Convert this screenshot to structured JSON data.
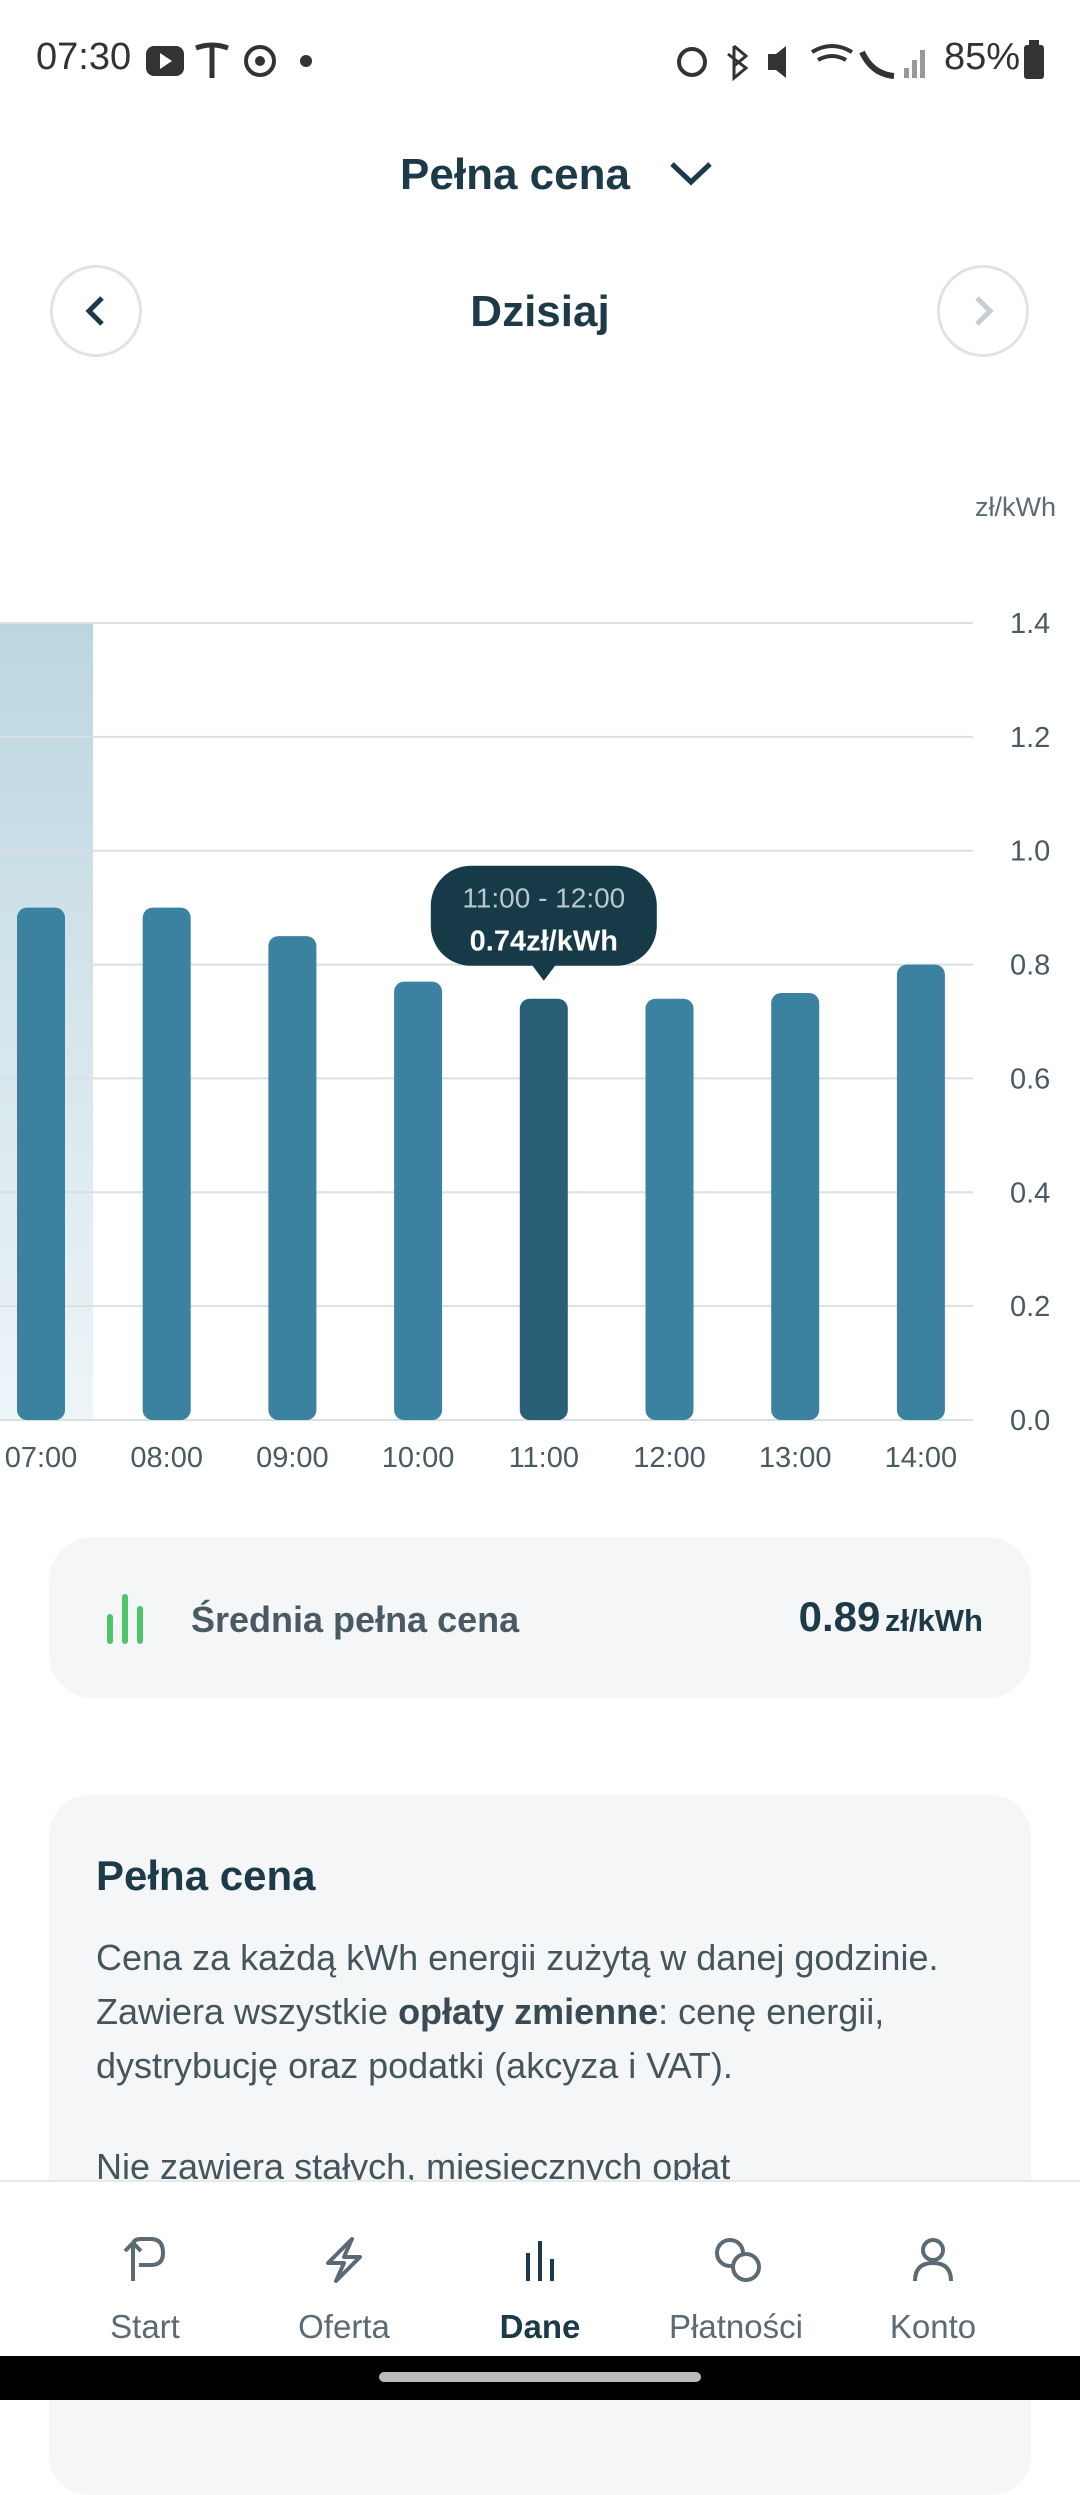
{
  "status_bar": {
    "time": "07:30",
    "battery": "85%"
  },
  "header": {
    "title": "Pełna cena",
    "day": "Dzisiaj"
  },
  "chart_data": {
    "type": "bar",
    "y_axis_label": "zł/kWh",
    "categories": [
      "07:00",
      "08:00",
      "09:00",
      "10:00",
      "11:00",
      "12:00",
      "13:00",
      "14:00"
    ],
    "values": [
      0.9,
      0.9,
      0.85,
      0.77,
      0.74,
      0.74,
      0.75,
      0.8
    ],
    "color": "#3b82a0",
    "selected_color": "#2a5f78",
    "selected": 4,
    "tooltip": {
      "range": "11:00 - 12:00",
      "value_label": "0.74zł/kWh"
    },
    "ylim": [
      0,
      1.4
    ],
    "yticks": [
      {
        "value": 0,
        "label": "0.0"
      },
      0.2,
      0.4,
      0.6,
      0.8,
      {
        "value": 1,
        "label": "1.0"
      },
      1.2,
      1.4
    ],
    "grid": true
  },
  "average": {
    "label": "Średnia pełna cena",
    "value": "0.89",
    "unit": "zł/kWh"
  },
  "info": {
    "title": "Pełna cena",
    "paragraph1": [
      "Cena za każdą kWh energii zużytą w danej godzinie. Zawiera wszystkie ",
      "opłaty zmienne",
      ": cenę energii, dystrybucję oraz podatki (akcyza i VAT)."
    ],
    "paragraph2": [
      "Nie zawiera stałych, ",
      "miesięcznych",
      " opłat"
    ]
  },
  "nav": [
    "Start",
    "Oferta",
    "Dane",
    "Płatności",
    "Konto"
  ]
}
